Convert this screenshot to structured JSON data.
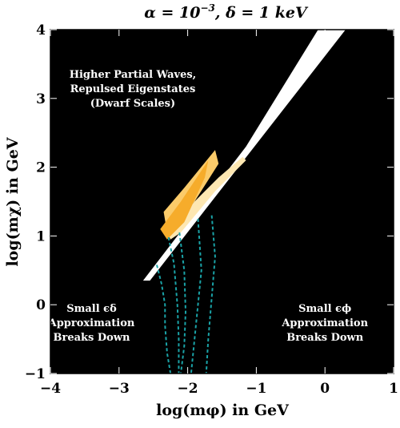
{
  "chart_data": {
    "type": "area",
    "title": "α = 10⁻³, δ = 1 keV",
    "title_parts": {
      "lhs1": "α = 10",
      "exp1": "−3",
      "sep": ",  ",
      "lhs2": "δ = 1 keV"
    },
    "xlabel": "log(mφ) in GeV",
    "ylabel": "log(mχ) in GeV",
    "xlim": [
      -4,
      1
    ],
    "ylim": [
      -1,
      4
    ],
    "xticks": [
      -4,
      -3,
      -2,
      -1,
      0,
      1
    ],
    "yticks": [
      -1,
      0,
      1,
      2,
      3,
      4
    ],
    "xtick_labels": [
      "−4",
      "−3",
      "−2",
      "−1",
      "0",
      "1"
    ],
    "ytick_labels": [
      "−1",
      "0",
      "1",
      "2",
      "3",
      "4"
    ],
    "grid": false,
    "colors": {
      "excluded": "#000000",
      "allowed": "#ffffff",
      "band_light": "#fde7b2",
      "band_mid": "#fbcb6a",
      "band_dark": "#f6ac2b",
      "curves": "#1aa3a7"
    },
    "regions": [
      {
        "name": "allowed-wedge",
        "color": "#ffffff",
        "points": [
          [
            -2.65,
            0.35
          ],
          [
            -1.15,
            2.3
          ],
          [
            -0.1,
            4.0
          ],
          [
            0.3,
            4.0
          ],
          [
            -2.55,
            0.35
          ]
        ]
      },
      {
        "name": "band-light",
        "color": "#fde7b2",
        "points": [
          [
            -2.3,
            1.05
          ],
          [
            -1.9,
            1.5
          ],
          [
            -1.55,
            1.85
          ],
          [
            -1.2,
            2.15
          ],
          [
            -1.15,
            2.1
          ],
          [
            -1.6,
            1.65
          ],
          [
            -2.1,
            1.05
          ],
          [
            -2.25,
            0.95
          ]
        ]
      },
      {
        "name": "band-mid",
        "color": "#fbcb6a",
        "points": [
          [
            -2.35,
            1.35
          ],
          [
            -2.05,
            1.7
          ],
          [
            -1.6,
            2.25
          ],
          [
            -1.55,
            2.05
          ],
          [
            -1.9,
            1.5
          ],
          [
            -2.3,
            1.05
          ]
        ]
      },
      {
        "name": "band-dark",
        "color": "#f6ac2b",
        "points": [
          [
            -2.4,
            1.1
          ],
          [
            -2.1,
            1.5
          ],
          [
            -1.7,
            2.1
          ],
          [
            -1.75,
            1.85
          ],
          [
            -2.05,
            1.2
          ],
          [
            -2.3,
            0.95
          ]
        ]
      }
    ],
    "series": [
      {
        "style": "dashed",
        "color": "#1aa3a7",
        "x": [
          -2.45,
          -2.38,
          -2.33,
          -2.33,
          -2.3,
          -2.25
        ],
        "y": [
          0.58,
          0.3,
          0.0,
          -0.3,
          -0.7,
          -1.0
        ]
      },
      {
        "style": "dashed",
        "color": "#1aa3a7",
        "x": [
          -2.28,
          -2.2,
          -2.15,
          -2.13,
          -2.13
        ],
        "y": [
          0.98,
          0.6,
          0.0,
          -0.5,
          -1.0
        ]
      },
      {
        "style": "dashed",
        "color": "#1aa3a7",
        "x": [
          -2.12,
          -2.05,
          -2.03,
          -2.05,
          -2.1
        ],
        "y": [
          1.05,
          0.5,
          -0.1,
          -0.6,
          -1.0
        ]
      },
      {
        "style": "dashed",
        "color": "#1aa3a7",
        "x": [
          -1.85,
          -1.8,
          -1.85,
          -1.9,
          -1.95
        ],
        "y": [
          1.25,
          0.5,
          0.0,
          -0.5,
          -1.0
        ]
      },
      {
        "style": "dashed",
        "color": "#1aa3a7",
        "x": [
          -1.65,
          -1.6,
          -1.65,
          -1.7,
          -1.73
        ],
        "y": [
          1.3,
          0.7,
          0.1,
          -0.5,
          -1.0
        ]
      }
    ],
    "annotations": [
      {
        "lines": [
          "Higher Partial Waves,",
          "Repulsed Eigenstates",
          "(Dwarf Scales)"
        ],
        "x": -2.8,
        "y": 3.3
      },
      {
        "lines": [
          "Small ϵδ",
          "Approximation",
          "Breaks Down"
        ],
        "x": -3.4,
        "y": -0.1
      },
      {
        "lines": [
          "Small ϵϕ",
          "Approximation",
          "Breaks Down"
        ],
        "x": 0.0,
        "y": -0.1
      }
    ]
  }
}
